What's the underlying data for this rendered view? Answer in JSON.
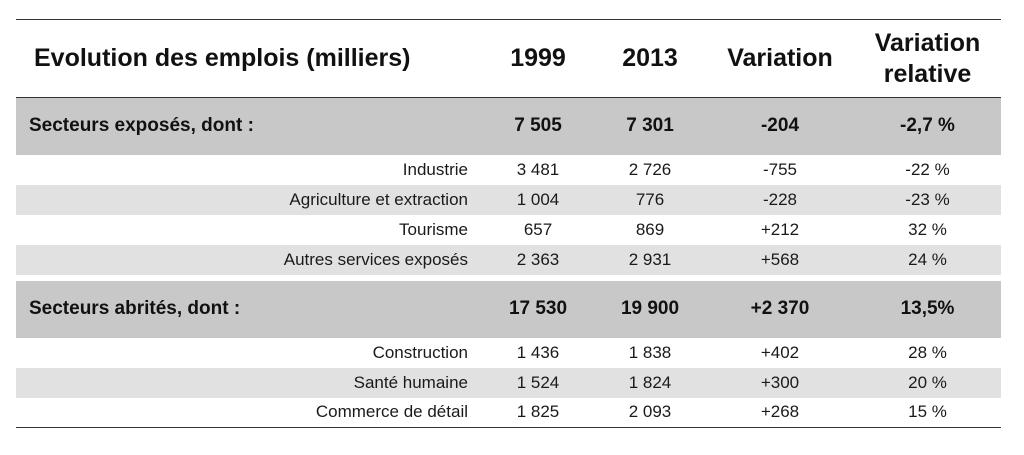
{
  "header": {
    "title": "Evolution des emplois (milliers)",
    "col_1999": "1999",
    "col_2013": "2013",
    "col_variation": "Variation",
    "col_variation_relative": "Variation relative"
  },
  "sections": [
    {
      "label": "Secteurs exposés, dont :",
      "v1999": "7 505",
      "v2013": "7 301",
      "variation": "-204",
      "relative": "-2,7 %",
      "rows": [
        {
          "label": "Industrie",
          "v1999": "3 481",
          "v2013": "2 726",
          "variation": "-755",
          "relative": "-22 %"
        },
        {
          "label": "Agriculture et extraction",
          "v1999": "1 004",
          "v2013": "776",
          "variation": "-228",
          "relative": "-23 %"
        },
        {
          "label": "Tourisme",
          "v1999": "657",
          "v2013": "869",
          "variation": "+212",
          "relative": "32 %"
        },
        {
          "label": "Autres services exposés",
          "v1999": "2 363",
          "v2013": "2 931",
          "variation": "+568",
          "relative": "24 %"
        }
      ]
    },
    {
      "label": "Secteurs abrités, dont :",
      "v1999": "17 530",
      "v2013": "19 900",
      "variation": "+2 370",
      "relative": "13,5%",
      "rows": [
        {
          "label": "Construction",
          "v1999": "1 436",
          "v2013": "1 838",
          "variation": "+402",
          "relative": "28 %"
        },
        {
          "label": "Santé humaine",
          "v1999": "1 524",
          "v2013": "1 824",
          "variation": "+300",
          "relative": "20 %"
        },
        {
          "label": "Commerce de détail",
          "v1999": "1 825",
          "v2013": "2 093",
          "variation": "+268",
          "relative": "15 %"
        }
      ]
    }
  ]
}
